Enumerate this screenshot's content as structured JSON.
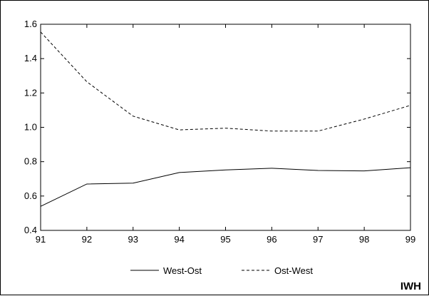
{
  "chart_data": {
    "type": "line",
    "title": "",
    "xlabel": "",
    "ylabel": "",
    "x": [
      "91",
      "92",
      "93",
      "94",
      "95",
      "96",
      "97",
      "98",
      "99"
    ],
    "xlim": [
      91,
      99
    ],
    "ylim": [
      0.4,
      1.6
    ],
    "yticks": [
      "0.4",
      "0.6",
      "0.8",
      "1.0",
      "1.2",
      "1.4",
      "1.6"
    ],
    "grid": false,
    "legend_position": "bottom",
    "series": [
      {
        "name": "West-Ost",
        "line_style": "solid",
        "color": "#000000",
        "values": [
          0.54,
          0.67,
          0.675,
          0.737,
          0.752,
          0.762,
          0.749,
          0.746,
          0.765
        ]
      },
      {
        "name": "Ost-West",
        "line_style": "dashed",
        "color": "#000000",
        "values": [
          1.555,
          1.265,
          1.065,
          0.985,
          0.995,
          0.978,
          0.978,
          1.048,
          1.128
        ]
      }
    ]
  },
  "brand": "IWH"
}
